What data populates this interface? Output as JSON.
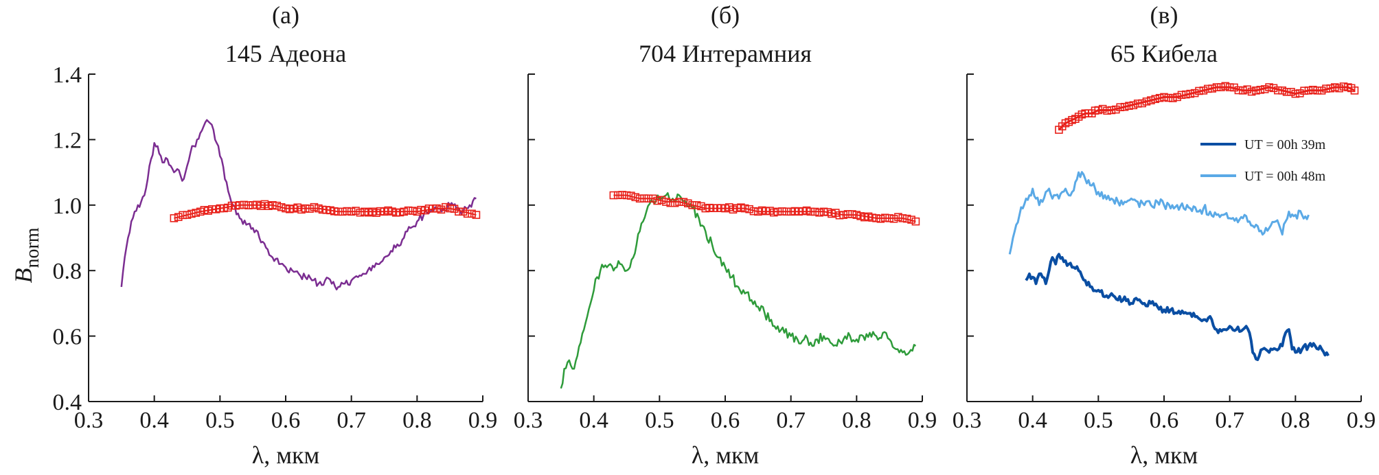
{
  "figure": {
    "ylabel_main": "B",
    "ylabel_sub": "norm",
    "xlabel": "λ, мкм"
  },
  "chart_data": [
    {
      "type": "line",
      "panel_letter": "(а)",
      "title": "145 Адеона",
      "xlabel": "λ, мкм",
      "ylabel": "Bnorm",
      "xlim": [
        0.3,
        0.9
      ],
      "ylim": [
        0.4,
        1.4
      ],
      "x_ticks": [
        "0.3",
        "0.4",
        "0.5",
        "0.6",
        "0.7",
        "0.8",
        "0.9"
      ],
      "y_ticks": [
        "0.4",
        "0.6",
        "0.8",
        "1.0",
        "1.2",
        "1.4"
      ],
      "grid": false,
      "series": [
        {
          "color": "#7b2d91",
          "marker": "none",
          "width": 2.5,
          "jitter": 0.012,
          "x": [
            0.35,
            0.355,
            0.36,
            0.365,
            0.37,
            0.375,
            0.38,
            0.385,
            0.39,
            0.395,
            0.4,
            0.405,
            0.41,
            0.415,
            0.42,
            0.425,
            0.43,
            0.435,
            0.44,
            0.445,
            0.45,
            0.455,
            0.46,
            0.465,
            0.47,
            0.475,
            0.48,
            0.485,
            0.49,
            0.495,
            0.5,
            0.51,
            0.52,
            0.53,
            0.54,
            0.55,
            0.56,
            0.57,
            0.58,
            0.59,
            0.6,
            0.61,
            0.62,
            0.63,
            0.64,
            0.65,
            0.66,
            0.67,
            0.68,
            0.69,
            0.7,
            0.71,
            0.72,
            0.73,
            0.74,
            0.75,
            0.76,
            0.77,
            0.78,
            0.79,
            0.8,
            0.81,
            0.82,
            0.83,
            0.84,
            0.85,
            0.86,
            0.87,
            0.88,
            0.89
          ],
          "y": [
            0.75,
            0.84,
            0.9,
            0.95,
            0.98,
            1.0,
            1.01,
            1.03,
            1.08,
            1.14,
            1.19,
            1.18,
            1.15,
            1.13,
            1.14,
            1.12,
            1.1,
            1.11,
            1.09,
            1.08,
            1.12,
            1.16,
            1.18,
            1.2,
            1.22,
            1.24,
            1.26,
            1.25,
            1.23,
            1.19,
            1.15,
            1.07,
            1.0,
            0.96,
            0.94,
            0.93,
            0.9,
            0.87,
            0.84,
            0.82,
            0.81,
            0.8,
            0.79,
            0.78,
            0.77,
            0.76,
            0.77,
            0.76,
            0.75,
            0.76,
            0.77,
            0.78,
            0.79,
            0.8,
            0.82,
            0.84,
            0.86,
            0.88,
            0.9,
            0.93,
            0.95,
            0.97,
            0.98,
            0.99,
            0.99,
            1.0,
            0.99,
            0.98,
            1.0,
            1.02
          ]
        },
        {
          "color": "#e8211a",
          "marker": "open-square",
          "width": 2,
          "x": [
            0.43,
            0.45,
            0.47,
            0.5,
            0.53,
            0.55,
            0.58,
            0.6,
            0.63,
            0.65,
            0.68,
            0.7,
            0.72,
            0.75,
            0.78,
            0.8,
            0.83,
            0.85,
            0.87,
            0.89
          ],
          "y": [
            0.96,
            0.97,
            0.98,
            0.99,
            1.0,
            1.0,
            1.0,
            0.99,
            0.99,
            0.99,
            0.98,
            0.98,
            0.98,
            0.98,
            0.98,
            0.98,
            0.99,
            0.99,
            0.98,
            0.97
          ]
        }
      ]
    },
    {
      "type": "line",
      "panel_letter": "(б)",
      "title": "704 Интерамния",
      "xlabel": "λ, мкм",
      "ylabel": "Bnorm",
      "xlim": [
        0.3,
        0.9
      ],
      "ylim": [
        0.4,
        1.4
      ],
      "x_ticks": [
        "0.3",
        "0.4",
        "0.5",
        "0.6",
        "0.7",
        "0.8",
        "0.9"
      ],
      "y_ticks": [
        "",
        "",
        "",
        "",
        "",
        ""
      ],
      "grid": false,
      "series": [
        {
          "color": "#2e9b3a",
          "marker": "none",
          "width": 2.5,
          "jitter": 0.015,
          "x": [
            0.35,
            0.355,
            0.36,
            0.365,
            0.37,
            0.375,
            0.38,
            0.385,
            0.39,
            0.395,
            0.4,
            0.405,
            0.41,
            0.415,
            0.42,
            0.425,
            0.43,
            0.435,
            0.44,
            0.445,
            0.45,
            0.455,
            0.46,
            0.465,
            0.47,
            0.475,
            0.48,
            0.49,
            0.5,
            0.51,
            0.52,
            0.53,
            0.54,
            0.55,
            0.56,
            0.57,
            0.58,
            0.59,
            0.6,
            0.61,
            0.62,
            0.63,
            0.64,
            0.65,
            0.66,
            0.67,
            0.68,
            0.69,
            0.7,
            0.71,
            0.72,
            0.73,
            0.74,
            0.75,
            0.76,
            0.77,
            0.78,
            0.79,
            0.8,
            0.81,
            0.82,
            0.83,
            0.84,
            0.85,
            0.86,
            0.87,
            0.88,
            0.89
          ],
          "y": [
            0.44,
            0.5,
            0.52,
            0.51,
            0.5,
            0.54,
            0.58,
            0.62,
            0.66,
            0.7,
            0.74,
            0.78,
            0.8,
            0.81,
            0.81,
            0.82,
            0.8,
            0.81,
            0.82,
            0.81,
            0.8,
            0.81,
            0.84,
            0.88,
            0.92,
            0.95,
            0.98,
            1.01,
            1.02,
            1.03,
            1.02,
            1.03,
            1.01,
            0.99,
            0.96,
            0.92,
            0.88,
            0.84,
            0.81,
            0.78,
            0.75,
            0.73,
            0.71,
            0.69,
            0.67,
            0.65,
            0.63,
            0.61,
            0.6,
            0.59,
            0.59,
            0.58,
            0.59,
            0.6,
            0.58,
            0.57,
            0.59,
            0.6,
            0.59,
            0.6,
            0.61,
            0.6,
            0.61,
            0.59,
            0.56,
            0.55,
            0.55,
            0.57
          ]
        },
        {
          "color": "#e8211a",
          "marker": "open-square",
          "width": 2,
          "x": [
            0.43,
            0.45,
            0.47,
            0.49,
            0.51,
            0.53,
            0.55,
            0.57,
            0.6,
            0.63,
            0.65,
            0.68,
            0.7,
            0.73,
            0.75,
            0.78,
            0.8,
            0.83,
            0.85,
            0.87,
            0.89
          ],
          "y": [
            1.03,
            1.03,
            1.02,
            1.02,
            1.01,
            1.01,
            1.0,
            0.99,
            0.99,
            0.99,
            0.98,
            0.98,
            0.98,
            0.98,
            0.98,
            0.97,
            0.97,
            0.96,
            0.96,
            0.96,
            0.95
          ]
        }
      ]
    },
    {
      "type": "line",
      "panel_letter": "(в)",
      "title": "65 Кибела",
      "xlabel": "λ, мкм",
      "ylabel": "Bnorm",
      "xlim": [
        0.3,
        0.9
      ],
      "ylim": [
        0.4,
        1.4
      ],
      "x_ticks": [
        "0.3",
        "0.4",
        "0.5",
        "0.6",
        "0.7",
        "0.8",
        "0.9"
      ],
      "y_ticks": [
        "",
        "",
        "",
        "",
        "",
        ""
      ],
      "grid": false,
      "legend": {
        "placement": "top-right",
        "entries": [
          {
            "label": "UT = 00h 39m",
            "color": "#0a4ea3"
          },
          {
            "label": "UT = 00h 48m",
            "color": "#5aa9e6"
          }
        ]
      },
      "series": [
        {
          "color": "#e8211a",
          "marker": "open-square",
          "width": 3,
          "x": [
            0.44,
            0.45,
            0.46,
            0.47,
            0.48,
            0.49,
            0.5,
            0.52,
            0.54,
            0.56,
            0.58,
            0.6,
            0.62,
            0.64,
            0.66,
            0.68,
            0.7,
            0.72,
            0.74,
            0.76,
            0.78,
            0.8,
            0.82,
            0.84,
            0.86,
            0.88,
            0.89
          ],
          "y": [
            1.23,
            1.25,
            1.26,
            1.27,
            1.28,
            1.28,
            1.29,
            1.29,
            1.3,
            1.31,
            1.32,
            1.33,
            1.33,
            1.34,
            1.35,
            1.36,
            1.36,
            1.35,
            1.35,
            1.36,
            1.35,
            1.34,
            1.35,
            1.35,
            1.36,
            1.36,
            1.35
          ]
        },
        {
          "name": "UT = 00h 48m",
          "color": "#5aa9e6",
          "marker": "none",
          "width": 3,
          "jitter": 0.014,
          "x": [
            0.365,
            0.37,
            0.375,
            0.38,
            0.385,
            0.39,
            0.395,
            0.4,
            0.405,
            0.41,
            0.415,
            0.42,
            0.425,
            0.43,
            0.435,
            0.44,
            0.445,
            0.45,
            0.455,
            0.46,
            0.465,
            0.47,
            0.48,
            0.49,
            0.5,
            0.51,
            0.52,
            0.53,
            0.54,
            0.55,
            0.56,
            0.57,
            0.58,
            0.59,
            0.6,
            0.61,
            0.62,
            0.63,
            0.64,
            0.65,
            0.66,
            0.67,
            0.68,
            0.69,
            0.7,
            0.71,
            0.72,
            0.73,
            0.74,
            0.745,
            0.75,
            0.76,
            0.77,
            0.775,
            0.78,
            0.785,
            0.79,
            0.8,
            0.81,
            0.82
          ],
          "y": [
            0.85,
            0.9,
            0.94,
            0.97,
            0.99,
            1.02,
            1.03,
            1.05,
            1.02,
            1.0,
            1.01,
            1.04,
            1.05,
            1.02,
            1.03,
            1.02,
            1.04,
            1.05,
            1.03,
            1.04,
            1.07,
            1.1,
            1.08,
            1.06,
            1.04,
            1.03,
            1.02,
            1.01,
            1.01,
            1.02,
            1.01,
            1.0,
            1.0,
            1.01,
            1.0,
            0.99,
            1.0,
            0.99,
            0.99,
            0.98,
            0.99,
            0.98,
            0.97,
            0.97,
            0.96,
            0.96,
            0.96,
            0.95,
            0.94,
            0.92,
            0.91,
            0.93,
            0.95,
            0.94,
            0.91,
            0.95,
            0.98,
            0.97,
            0.97,
            0.97
          ]
        },
        {
          "name": "UT = 00h 39m",
          "color": "#0a4ea3",
          "marker": "none",
          "width": 4,
          "jitter": 0.01,
          "x": [
            0.39,
            0.395,
            0.4,
            0.405,
            0.41,
            0.415,
            0.42,
            0.425,
            0.43,
            0.435,
            0.44,
            0.445,
            0.45,
            0.455,
            0.46,
            0.47,
            0.48,
            0.49,
            0.5,
            0.51,
            0.52,
            0.53,
            0.54,
            0.55,
            0.56,
            0.57,
            0.58,
            0.59,
            0.6,
            0.61,
            0.62,
            0.63,
            0.64,
            0.65,
            0.66,
            0.67,
            0.68,
            0.69,
            0.7,
            0.71,
            0.72,
            0.725,
            0.73,
            0.735,
            0.74,
            0.745,
            0.75,
            0.76,
            0.77,
            0.78,
            0.785,
            0.79,
            0.795,
            0.8,
            0.81,
            0.82,
            0.83,
            0.84,
            0.85
          ],
          "y": [
            0.77,
            0.79,
            0.78,
            0.76,
            0.79,
            0.78,
            0.76,
            0.8,
            0.84,
            0.82,
            0.85,
            0.84,
            0.83,
            0.82,
            0.81,
            0.8,
            0.77,
            0.75,
            0.74,
            0.72,
            0.73,
            0.71,
            0.72,
            0.7,
            0.71,
            0.7,
            0.7,
            0.69,
            0.68,
            0.68,
            0.67,
            0.67,
            0.67,
            0.66,
            0.65,
            0.66,
            0.62,
            0.62,
            0.63,
            0.62,
            0.62,
            0.63,
            0.61,
            0.55,
            0.53,
            0.54,
            0.56,
            0.55,
            0.56,
            0.57,
            0.61,
            0.62,
            0.56,
            0.55,
            0.56,
            0.57,
            0.57,
            0.56,
            0.54
          ]
        }
      ]
    }
  ]
}
